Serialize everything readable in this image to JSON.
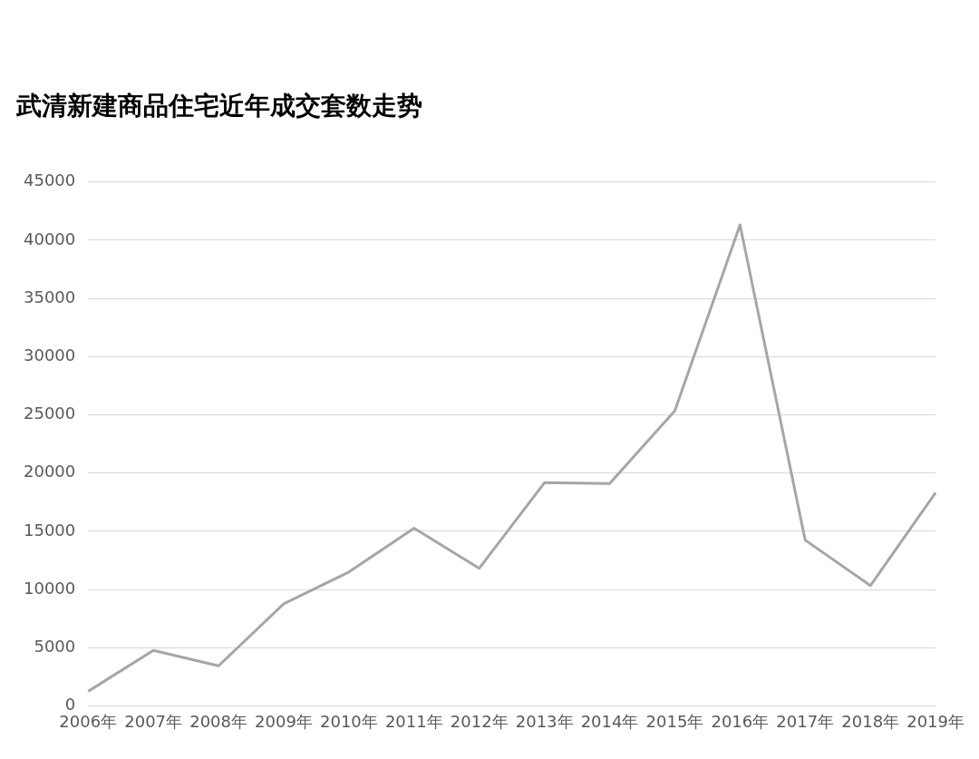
{
  "chart_data": {
    "type": "line",
    "title": "武清新建商品住宅近年成交套数走势",
    "categories": [
      "2006年",
      "2007年",
      "2008年",
      "2009年",
      "2010年",
      "2011年",
      "2012年",
      "2013年",
      "2014年",
      "2015年",
      "2016年",
      "2017年",
      "2018年",
      "2019年"
    ],
    "series": [
      {
        "color": "#a6a6a6",
        "values": [
          1250,
          4770,
          3440,
          8760,
          11500,
          15260,
          11820,
          19170,
          19100,
          25350,
          41320,
          14240,
          10330,
          18310
        ]
      }
    ],
    "ylim": [
      0,
      45000
    ],
    "yticks": [
      0,
      5000,
      10000,
      15000,
      20000,
      25000,
      30000,
      35000,
      40000,
      45000
    ],
    "grid": "y",
    "legend": false,
    "marker": "none",
    "line_style": "solid"
  }
}
